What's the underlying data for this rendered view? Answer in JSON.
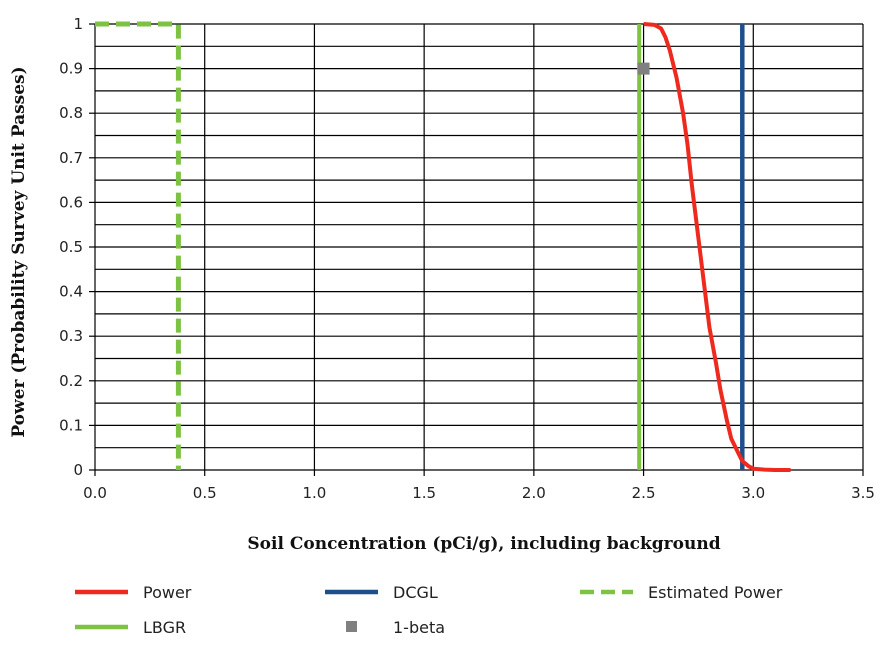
{
  "chart_data": {
    "type": "line",
    "xlabel": "Soil Concentration (pCi/g), including background",
    "ylabel": "Power (Probability Survey Unit Passes)",
    "xlim": [
      0,
      3.5
    ],
    "ylim": [
      0,
      1
    ],
    "x_ticks": [
      "0.0",
      "0.5",
      "1.0",
      "1.5",
      "2.0",
      "2.5",
      "3.0",
      "3.5"
    ],
    "y_ticks": [
      "0",
      "0.1",
      "0.2",
      "0.3",
      "0.4",
      "0.5",
      "0.6",
      "0.7",
      "0.8",
      "0.9",
      "1"
    ],
    "grid": true,
    "legend_position": "bottom",
    "series": [
      {
        "name": "Power",
        "color": "#ee2a1e",
        "style": "solid",
        "points": [
          [
            2.5,
            1.0
          ],
          [
            2.55,
            0.998
          ],
          [
            2.58,
            0.99
          ],
          [
            2.6,
            0.97
          ],
          [
            2.62,
            0.94
          ],
          [
            2.65,
            0.88
          ],
          [
            2.68,
            0.8
          ],
          [
            2.7,
            0.73
          ],
          [
            2.72,
            0.64
          ],
          [
            2.75,
            0.52
          ],
          [
            2.78,
            0.4
          ],
          [
            2.8,
            0.32
          ],
          [
            2.83,
            0.24
          ],
          [
            2.85,
            0.18
          ],
          [
            2.88,
            0.11
          ],
          [
            2.9,
            0.07
          ],
          [
            2.93,
            0.04
          ],
          [
            2.95,
            0.02
          ],
          [
            2.98,
            0.008
          ],
          [
            3.0,
            0.003
          ],
          [
            3.05,
            0.001
          ],
          [
            3.1,
            0.0
          ],
          [
            3.17,
            0.0
          ]
        ]
      },
      {
        "name": "DCGL",
        "color": "#1f4e8c",
        "style": "solid",
        "points": [
          [
            2.95,
            0
          ],
          [
            2.95,
            1
          ]
        ]
      },
      {
        "name": "Estimated Power",
        "color": "#7dc242",
        "style": "dashed",
        "points": [
          [
            0.0,
            1.0
          ],
          [
            0.38,
            1.0
          ],
          [
            0.38,
            0.0
          ]
        ]
      },
      {
        "name": "LBGR",
        "color": "#7dc242",
        "style": "solid",
        "points": [
          [
            2.48,
            0
          ],
          [
            2.48,
            1
          ]
        ]
      },
      {
        "name": "1-beta",
        "color": "#808080",
        "style": "marker",
        "points": [
          [
            2.5,
            0.9
          ]
        ]
      }
    ]
  }
}
